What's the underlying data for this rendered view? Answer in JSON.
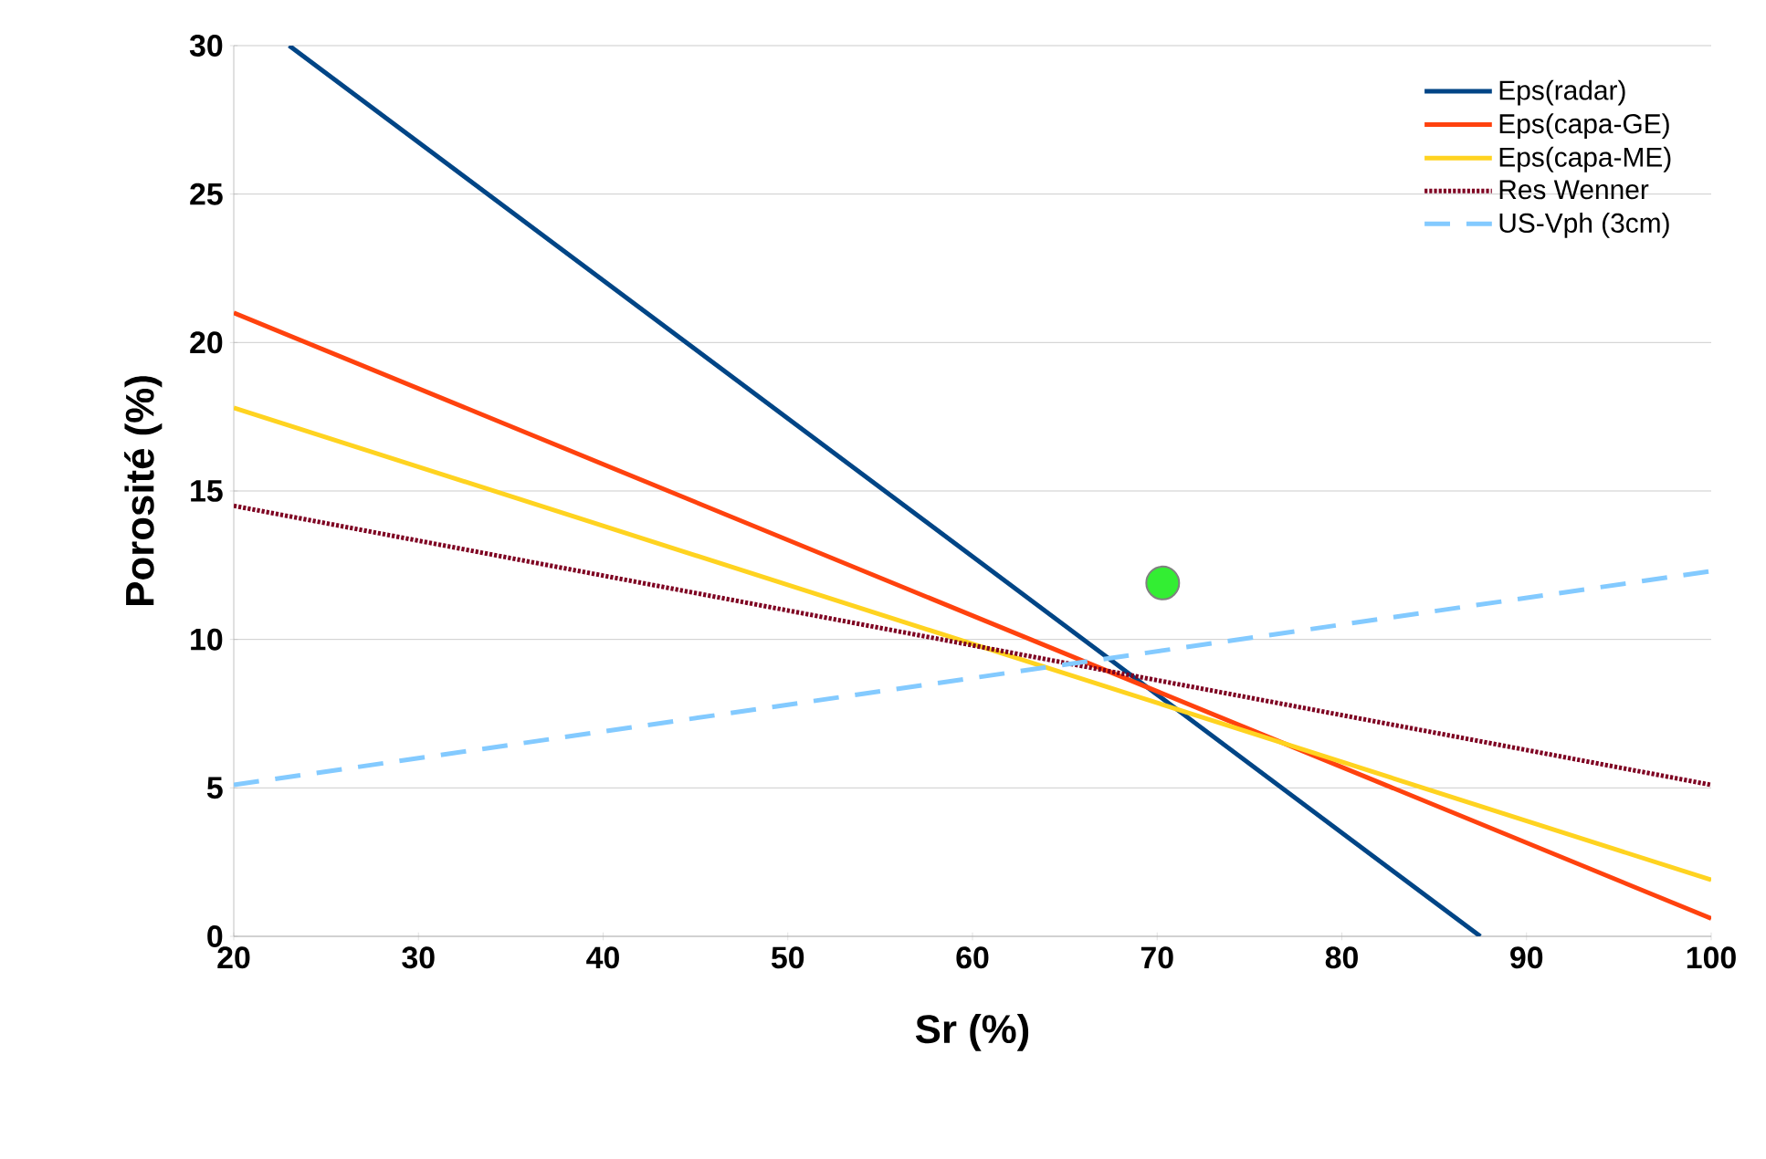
{
  "chart_data": {
    "type": "line",
    "xlabel": "Sr (%)",
    "ylabel": "Porosité (%)",
    "xlim": [
      20,
      100
    ],
    "xticks": [
      20,
      30,
      40,
      50,
      60,
      70,
      80,
      90,
      100
    ],
    "ylim": [
      0,
      30
    ],
    "yticks": [
      0,
      5,
      10,
      15,
      20,
      25,
      30
    ],
    "grid": "y",
    "legend": "top right",
    "marker": "none",
    "series": [
      {
        "name": "Eps(radar)",
        "color": "#004586",
        "x": [
          23,
          87.5
        ],
        "values": [
          30,
          0
        ],
        "line_style": "solid"
      },
      {
        "name": "Eps(capa-GE)",
        "color": "#ff420e",
        "x": [
          20,
          100
        ],
        "values": [
          21,
          0.6
        ],
        "line_style": "solid"
      },
      {
        "name": "Eps(capa-ME)",
        "color": "#ffd320",
        "x": [
          20,
          100
        ],
        "values": [
          17.8,
          1.9
        ],
        "line_style": "solid"
      },
      {
        "name": "Res Wenner",
        "color": "#7e0021",
        "x": [
          20,
          100
        ],
        "values": [
          14.5,
          5.1
        ],
        "line_style": "dotted"
      },
      {
        "name": "US-Vph (3cm)",
        "color": "#83caff",
        "x": [
          20,
          100
        ],
        "values": [
          5.1,
          12.3
        ],
        "line_style": "dashed"
      },
      {
        "type": "scatter",
        "marker": "circle",
        "color": "#33ee33",
        "x": [
          70.3
        ],
        "values": [
          11.9
        ]
      }
    ]
  }
}
